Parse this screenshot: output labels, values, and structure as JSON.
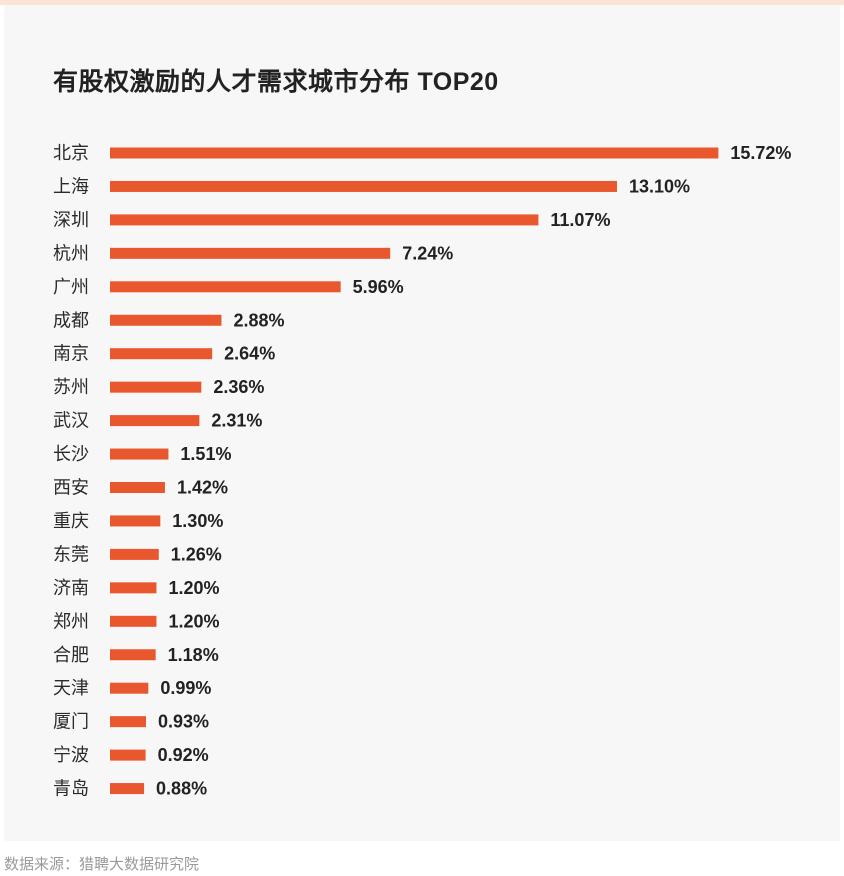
{
  "chart_data": {
    "type": "bar",
    "orientation": "horizontal",
    "title": "有股权激励的人才需求城市分布 TOP20",
    "categories": [
      "北京",
      "上海",
      "深圳",
      "杭州",
      "广州",
      "成都",
      "南京",
      "苏州",
      "武汉",
      "长沙",
      "西安",
      "重庆",
      "东莞",
      "济南",
      "郑州",
      "合肥",
      "天津",
      "厦门",
      "宁波",
      "青岛"
    ],
    "values": [
      15.72,
      13.1,
      11.07,
      7.24,
      5.96,
      2.88,
      2.64,
      2.36,
      2.31,
      1.51,
      1.42,
      1.3,
      1.26,
      1.2,
      1.2,
      1.18,
      0.99,
      0.93,
      0.92,
      0.88
    ],
    "value_labels": [
      "15.72%",
      "13.10%",
      "11.07%",
      "7.24%",
      "5.96%",
      "2.88%",
      "2.64%",
      "2.36%",
      "2.31%",
      "1.51%",
      "1.42%",
      "1.30%",
      "1.26%",
      "1.20%",
      "1.20%",
      "1.18%",
      "0.99%",
      "0.93%",
      "0.92%",
      "0.88%"
    ],
    "unit": "%",
    "grid": false,
    "legend": "none",
    "bar_color": "#e8572d"
  },
  "source": "数据来源：猎聘大数据研究院"
}
